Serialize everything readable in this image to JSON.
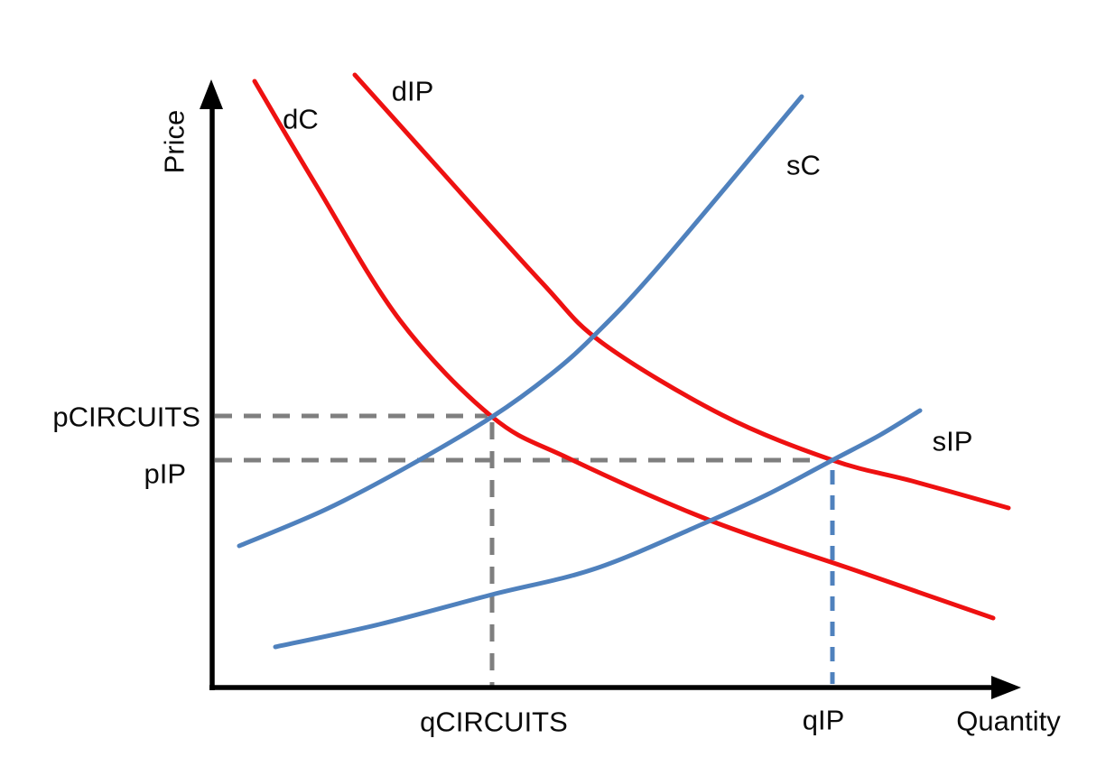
{
  "colors": {
    "demand": "#ee1111",
    "supply": "#4f81bd",
    "guide_gray": "#7f7f7f",
    "guide_blue": "#4f81bd",
    "axis": "#000000"
  },
  "chart_data": {
    "type": "line",
    "title": "",
    "xlabel": "Quantity",
    "ylabel": "Price",
    "axes_numeric": false,
    "grid": false,
    "legend": "inline curve labels",
    "coordinate_space": "screen pixels, 1235x839, y increases downward",
    "series": [
      {
        "name": "demand-circuits",
        "label": "dC",
        "kind": "demand",
        "color": "#ee1111",
        "points": [
          [
            282,
            90
          ],
          [
            350,
            205
          ],
          [
            443,
            355
          ],
          [
            545,
            462
          ],
          [
            630,
            508
          ],
          [
            787,
            577
          ],
          [
            950,
            633
          ],
          [
            1100,
            685
          ]
        ]
      },
      {
        "name": "demand-ip",
        "label": "dIP",
        "kind": "demand",
        "color": "#ee1111",
        "points": [
          [
            393,
            83
          ],
          [
            480,
            180
          ],
          [
            600,
            313
          ],
          [
            667,
            380
          ],
          [
            800,
            460
          ],
          [
            922,
            510
          ],
          [
            1010,
            533
          ],
          [
            1117,
            563
          ]
        ]
      },
      {
        "name": "supply-circuits",
        "label": "sC",
        "kind": "supply",
        "color": "#4f81bd",
        "points": [
          [
            265,
            605
          ],
          [
            360,
            565
          ],
          [
            450,
            518
          ],
          [
            545,
            462
          ],
          [
            610,
            415
          ],
          [
            660,
            370
          ],
          [
            730,
            295
          ],
          [
            888,
            107
          ]
        ]
      },
      {
        "name": "supply-ip",
        "label": "sIP",
        "kind": "supply",
        "color": "#4f81bd",
        "points": [
          [
            305,
            717
          ],
          [
            420,
            692
          ],
          [
            545,
            659
          ],
          [
            660,
            630
          ],
          [
            780,
            580
          ],
          [
            850,
            548
          ],
          [
            922,
            510
          ],
          [
            975,
            482
          ],
          [
            1019,
            455
          ]
        ]
      }
    ],
    "equilibria": [
      {
        "price_label": "pCIRCUITS",
        "quantity_label": "qCIRCUITS",
        "at": "intersection of dC and sC",
        "x": 545,
        "y": 462
      },
      {
        "price_label": "pIP",
        "quantity_label": "qIP",
        "at": "intersection of dIP and sIP",
        "x": 922,
        "y": 510
      }
    ],
    "guides": [
      {
        "name": "price-guide-circuits",
        "x1": 238,
        "y1": 461,
        "x2": 540,
        "y2": 461,
        "color": "#7f7f7f",
        "dash": "19 13"
      },
      {
        "name": "price-guide-ip",
        "x1": 238,
        "y1": 510,
        "x2": 906,
        "y2": 510,
        "color": "#7f7f7f",
        "dash": "19 13"
      },
      {
        "name": "quantity-guide-circuits",
        "x1": 545,
        "y1": 468,
        "x2": 545,
        "y2": 760,
        "color": "#7f7f7f",
        "dash": "19 13"
      },
      {
        "name": "quantity-guide-ip",
        "x1": 922,
        "y1": 521,
        "x2": 922,
        "y2": 758,
        "color": "#4f81bd",
        "dash": "16 12"
      }
    ]
  }
}
